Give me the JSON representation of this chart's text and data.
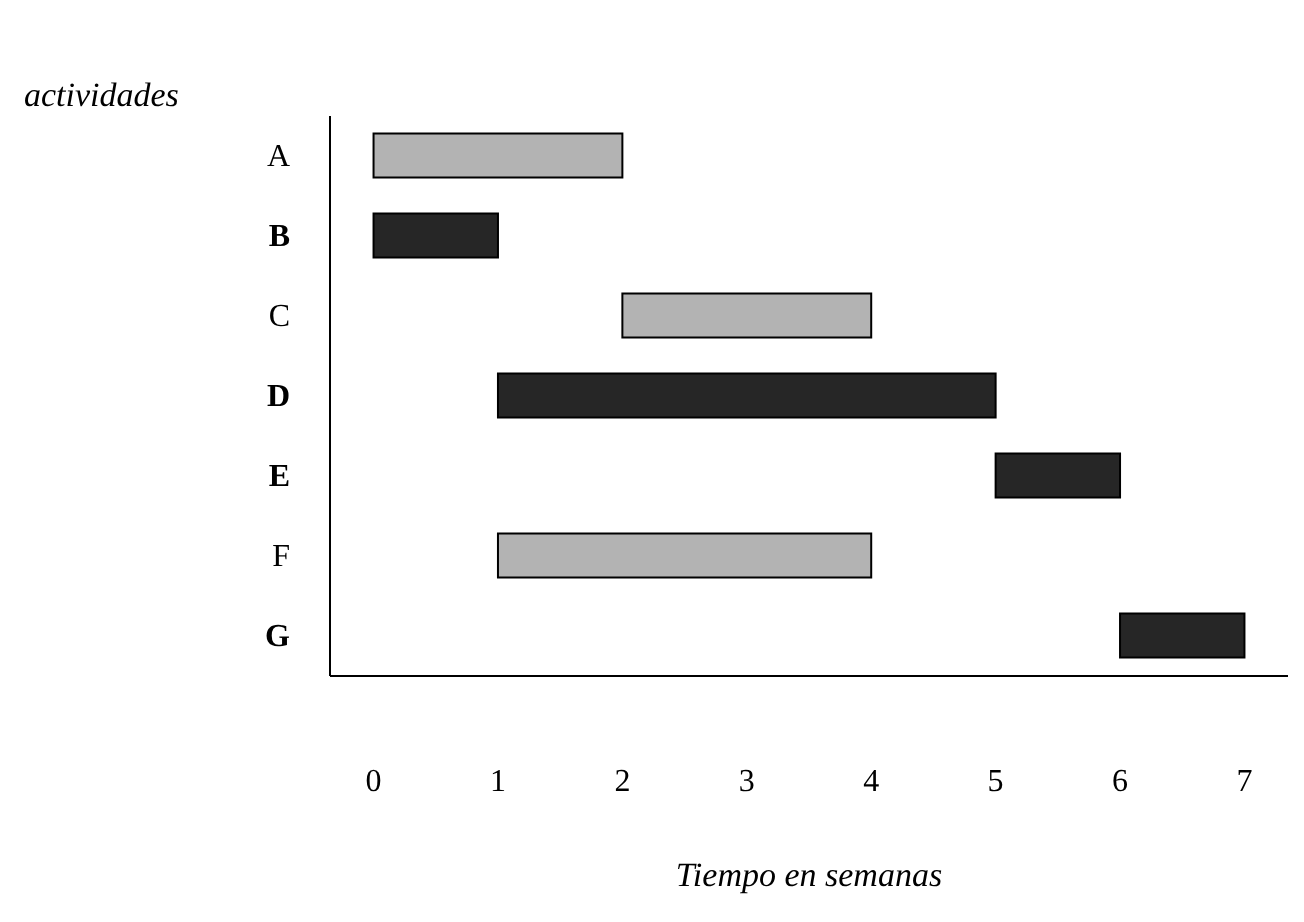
{
  "chart_data": {
    "type": "bar",
    "orientation": "horizontal",
    "ylabel": "actividades",
    "xlabel": "Tiempo en semanas",
    "categories": [
      "A",
      "B",
      "C",
      "D",
      "E",
      "F",
      "G"
    ],
    "base": [
      0,
      0,
      2,
      1,
      5,
      1,
      6
    ],
    "values": [
      2,
      1,
      2,
      4,
      1,
      3,
      1
    ],
    "colors": [
      "#b3b3b3",
      "#262626",
      "#b3b3b3",
      "#262626",
      "#262626",
      "#b3b3b3",
      "#262626"
    ],
    "xlim": [
      -0.35,
      7.35
    ],
    "xticks": [
      0,
      1,
      2,
      3,
      4,
      5,
      6,
      7
    ],
    "grid": false,
    "legend": false
  }
}
